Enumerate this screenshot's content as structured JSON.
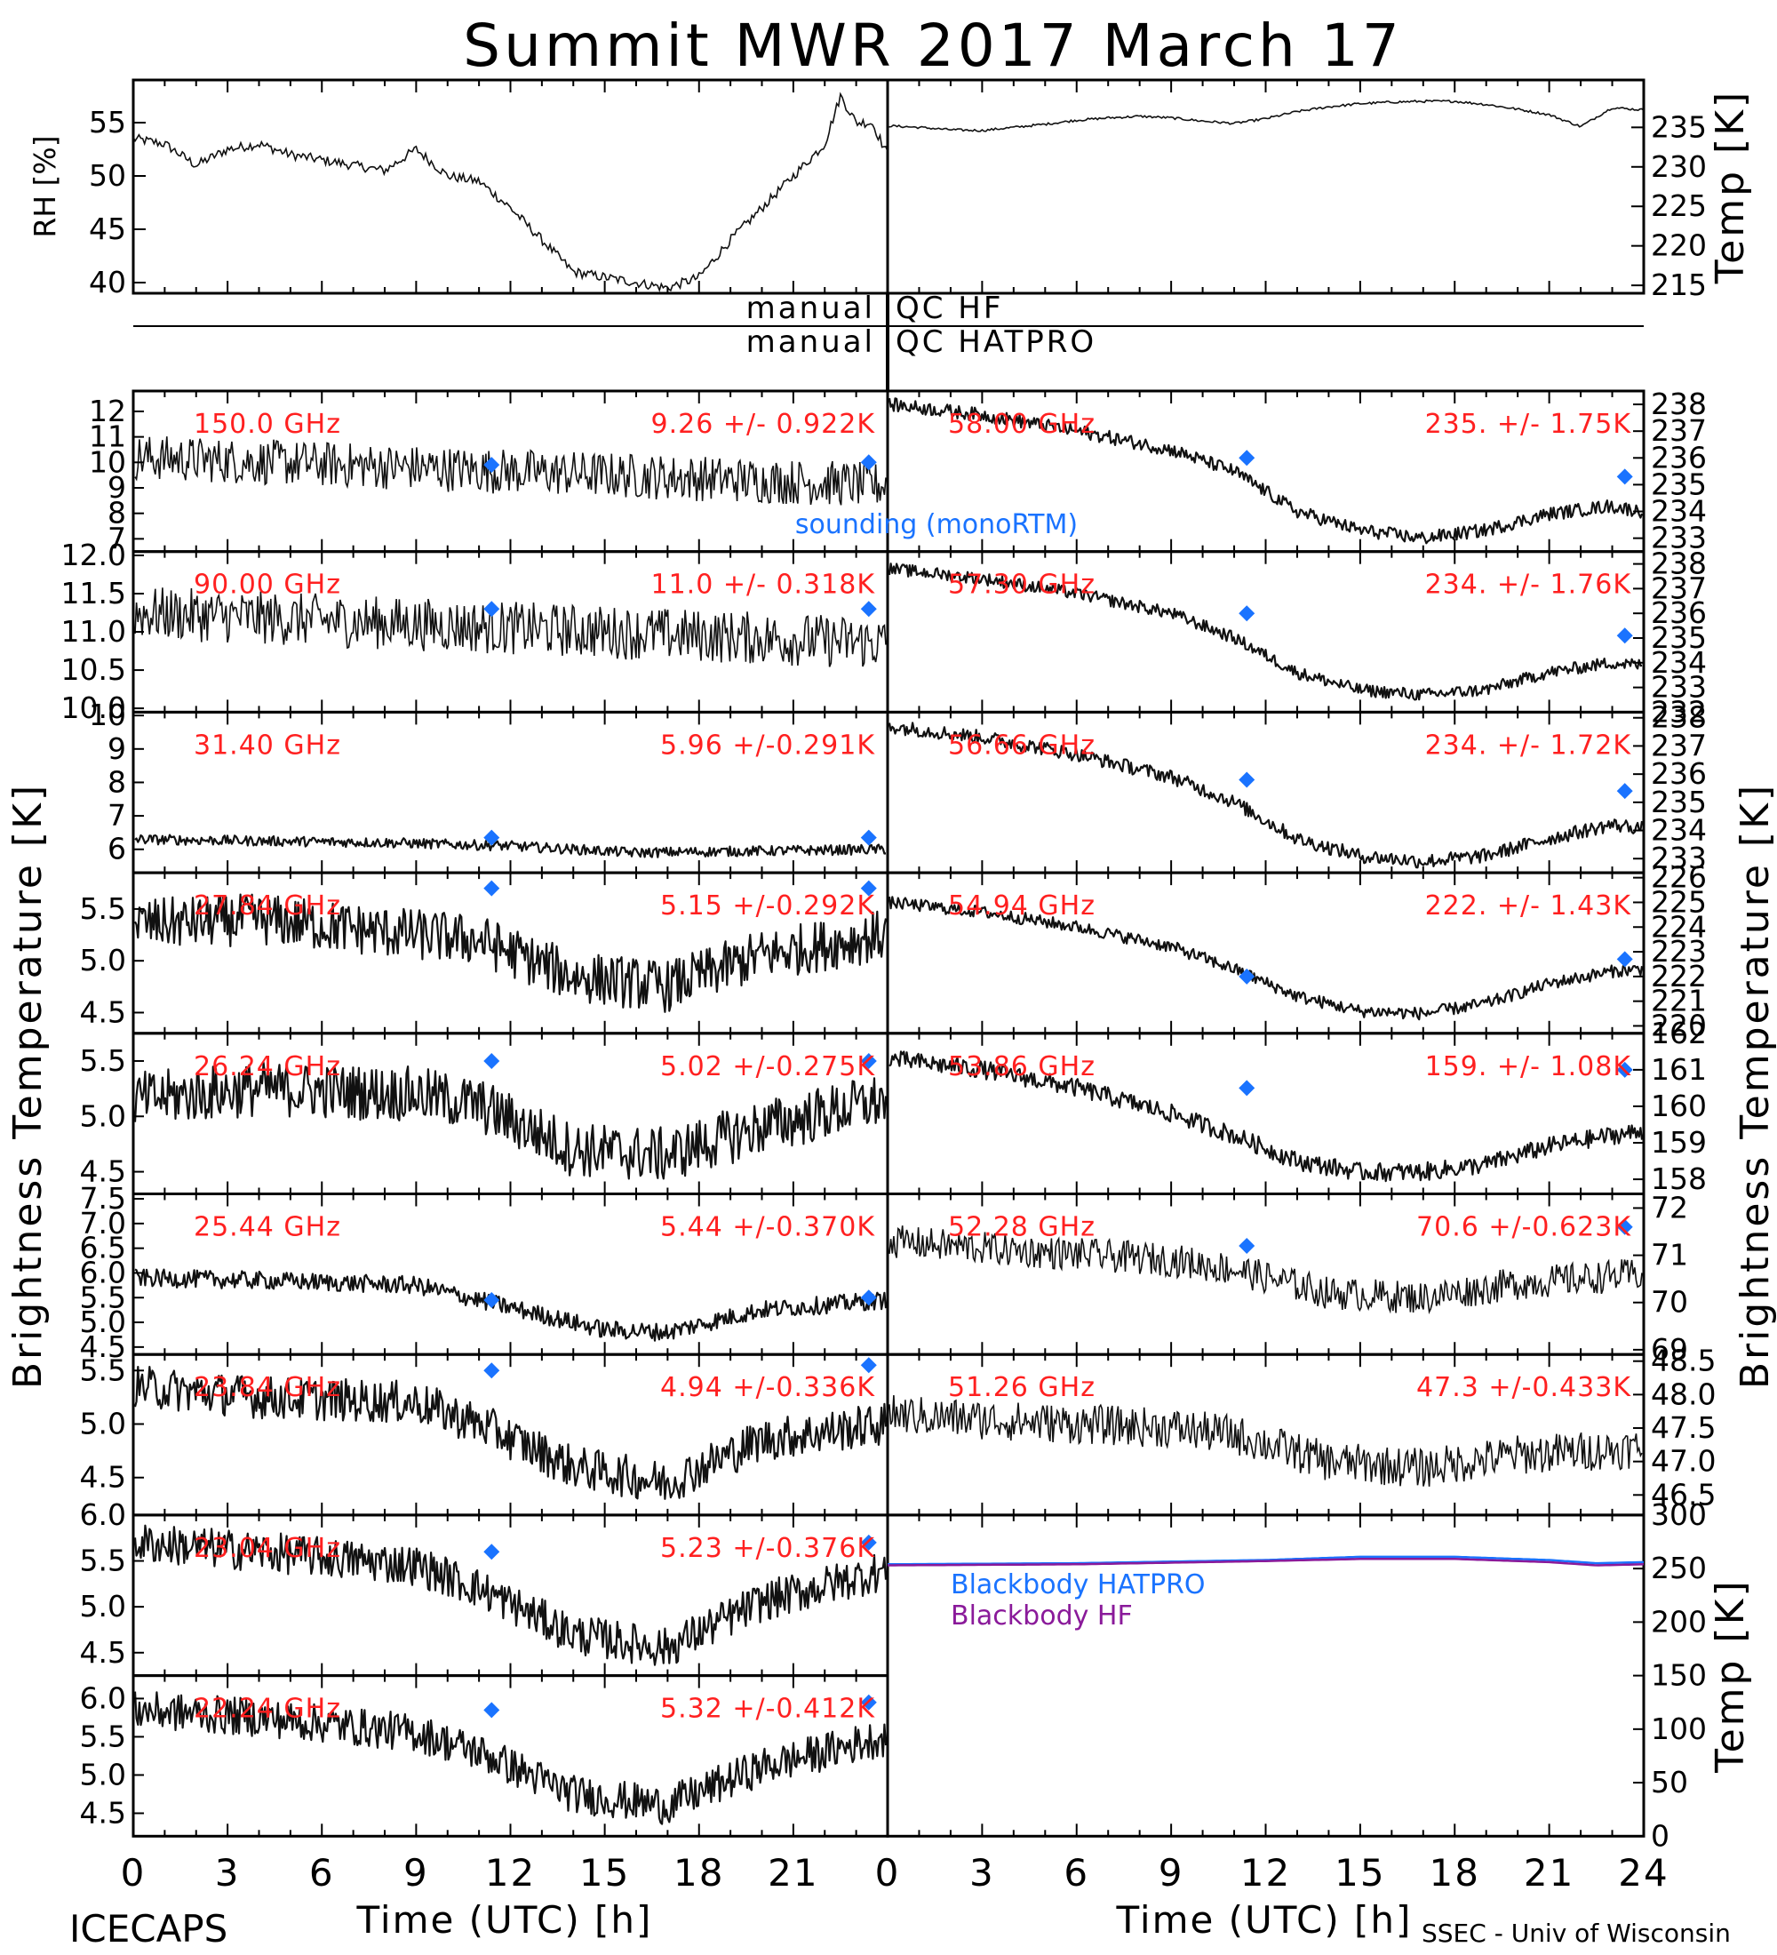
{
  "title": "Summit MWR 2017 March 17",
  "footer": {
    "left": "ICECAPS",
    "xlabel": "Time (UTC) [h]",
    "credit": "SSEC - Univ of Wisconsin"
  },
  "qc": {
    "left": "manual",
    "hf": "QC HF",
    "hatpro": "QC HATPRO"
  },
  "labels": {
    "left_y": "Brightness Temperature [K]",
    "right_y": "Brightness Temperature [K]",
    "sounding": "sounding (monoRTM)",
    "blackbody_hatpro": "Blackbody HATPRO",
    "blackbody_hf": "Blackbody HF"
  },
  "colors": {
    "annotation": "#ff2020",
    "sounding": "#1a73ff",
    "blackbody_hatpro": "#1a73ff",
    "blackbody_hf": "#8a1a9a",
    "trace": "#111111"
  },
  "chart_data": [
    {
      "type": "line",
      "panel": "rh",
      "ylabel": "RH [%]",
      "xlim": [
        0,
        24
      ],
      "ylim": [
        39,
        59
      ],
      "yticks": [
        40,
        45,
        50,
        55
      ],
      "xticks": [
        0,
        3,
        6,
        9,
        12,
        15,
        18,
        21
      ],
      "x": [
        0,
        1,
        2,
        3,
        4,
        5,
        6,
        7,
        8,
        9,
        10,
        11,
        12,
        13,
        14,
        15,
        16,
        17,
        18,
        19,
        20,
        21,
        22,
        22.5,
        23,
        23.5,
        24
      ],
      "y": [
        53.5,
        53,
        51,
        52.5,
        53,
        52,
        51.5,
        51,
        50.5,
        52.5,
        50,
        49.5,
        47,
        44,
        41,
        40.5,
        40,
        39.5,
        40.5,
        44,
        47,
        50,
        53,
        57.5,
        55,
        55,
        52
      ]
    },
    {
      "type": "line",
      "panel": "temp",
      "ylabel": "Temp [K]",
      "xlim": [
        0,
        24
      ],
      "ylim": [
        214,
        241
      ],
      "yticks": [
        215,
        220,
        225,
        230,
        235
      ],
      "x": [
        0,
        1,
        2,
        3,
        4,
        5,
        6,
        7,
        8,
        9,
        10,
        11,
        12,
        13,
        14,
        15,
        16,
        17,
        18,
        19,
        20,
        21,
        22,
        23,
        24
      ],
      "y": [
        235.2,
        235,
        234.7,
        234.6,
        235,
        235.4,
        235.9,
        236.2,
        236.4,
        236.2,
        235.8,
        235.5,
        236.1,
        237,
        237.6,
        238,
        238.2,
        238.3,
        238.3,
        237.9,
        237.3,
        236.6,
        235.1,
        237.5,
        237.2
      ]
    },
    {
      "type": "line",
      "panel": "ch-150",
      "side": "left",
      "label": "150.0 GHz",
      "stat": "9.26 +/- 0.922K",
      "ylim": [
        6.5,
        12.8
      ],
      "yticks": [
        "7",
        "8",
        "9",
        "10",
        "11",
        "12"
      ],
      "x": [
        0,
        24
      ],
      "y": [
        10.2,
        9.1
      ],
      "noise": 0.9,
      "thin": true,
      "sounding_x": [
        11.4,
        23.4
      ],
      "sounding_y": [
        9.9,
        10.0
      ]
    },
    {
      "type": "line",
      "panel": "ch-90",
      "side": "left",
      "label": "90.00 GHz",
      "stat": "11.0 +/- 0.318K",
      "ylim": [
        9.95,
        12.05
      ],
      "yticks": [
        "10.0",
        "10.5",
        "11.0",
        "11.5",
        "12.0"
      ],
      "x": [
        0,
        24
      ],
      "y": [
        11.25,
        10.85
      ],
      "noise": 0.35,
      "thin": true,
      "sounding_x": [
        11.4,
        23.4
      ],
      "sounding_y": [
        11.3,
        11.3
      ]
    },
    {
      "type": "line",
      "panel": "ch-31.4",
      "side": "left",
      "label": "31.40 GHz",
      "stat": "5.96 +/-0.291K",
      "ylim": [
        5.3,
        10.1
      ],
      "yticks": [
        "6",
        "7",
        "8",
        "9",
        "10"
      ],
      "x": [
        0,
        8,
        12,
        16,
        24
      ],
      "y": [
        6.3,
        6.2,
        6.1,
        5.9,
        6.0
      ],
      "noise": 0.15,
      "sounding_x": [
        11.4,
        23.4
      ],
      "sounding_y": [
        6.35,
        6.35
      ]
    },
    {
      "type": "line",
      "panel": "ch-27.84",
      "side": "left",
      "label": "27.84 GHz",
      "stat": "5.15 +/-0.292K",
      "ylim": [
        4.3,
        5.85
      ],
      "yticks": [
        "4.5",
        "5.0",
        "5.5"
      ],
      "x": [
        0,
        4,
        9,
        11,
        14,
        17,
        20,
        24
      ],
      "y": [
        5.35,
        5.4,
        5.25,
        5.2,
        4.85,
        4.75,
        5.05,
        5.25
      ],
      "noise": 0.25,
      "sounding_x": [
        11.4,
        23.4
      ],
      "sounding_y": [
        5.7,
        5.7
      ]
    },
    {
      "type": "line",
      "panel": "ch-26.24",
      "side": "left",
      "label": "26.24 GHz",
      "stat": "5.02 +/-0.275K",
      "ylim": [
        4.3,
        5.75
      ],
      "yticks": [
        "4.5",
        "5.0",
        "5.5"
      ],
      "x": [
        0,
        4,
        9,
        11,
        14,
        17,
        20,
        24
      ],
      "y": [
        5.15,
        5.25,
        5.2,
        5.1,
        4.7,
        4.65,
        4.9,
        5.15
      ],
      "noise": 0.25,
      "sounding_x": [
        11.4,
        23.4
      ],
      "sounding_y": [
        5.5,
        5.5
      ]
    },
    {
      "type": "line",
      "panel": "ch-25.44",
      "side": "left",
      "label": "25.44 GHz",
      "stat": "5.44 +/-0.370K",
      "ylim": [
        4.35,
        7.6
      ],
      "yticks": [
        "4.5",
        "5.0",
        "5.5",
        "6.0",
        "6.5",
        "7.0",
        "7.5"
      ],
      "x": [
        0,
        4,
        9,
        12,
        15,
        17,
        20,
        24
      ],
      "y": [
        5.9,
        5.85,
        5.75,
        5.3,
        4.85,
        4.8,
        5.25,
        5.45
      ],
      "noise": 0.18,
      "sounding_x": [
        11.4,
        23.4
      ],
      "sounding_y": [
        5.45,
        5.5
      ]
    },
    {
      "type": "line",
      "panel": "ch-23.84",
      "side": "left",
      "label": "23.84 GHz",
      "stat": "4.94 +/-0.336K",
      "ylim": [
        4.15,
        5.65
      ],
      "yticks": [
        "4.5",
        "5.0",
        "5.5"
      ],
      "x": [
        0,
        4,
        9,
        11,
        14,
        17,
        20,
        24
      ],
      "y": [
        5.35,
        5.25,
        5.2,
        5.0,
        4.6,
        4.45,
        4.85,
        5.0
      ],
      "noise": 0.2,
      "sounding_x": [
        11.4,
        23.4
      ],
      "sounding_y": [
        5.5,
        5.55
      ]
    },
    {
      "type": "line",
      "panel": "ch-23.04",
      "side": "left",
      "label": "23.04 GHz",
      "stat": "5.23 +/-0.376K",
      "ylim": [
        4.25,
        6.0
      ],
      "yticks": [
        "4.5",
        "5.0",
        "5.5",
        "6.0"
      ],
      "x": [
        0,
        4,
        9,
        11,
        14,
        17,
        20,
        24
      ],
      "y": [
        5.7,
        5.6,
        5.45,
        5.2,
        4.7,
        4.55,
        5.05,
        5.4
      ],
      "noise": 0.22,
      "sounding_x": [
        11.4,
        23.4
      ],
      "sounding_y": [
        5.6,
        5.7
      ]
    },
    {
      "type": "line",
      "panel": "ch-22.24",
      "side": "left",
      "label": "22.24 GHz",
      "stat": "5.32 +/-0.412K",
      "ylim": [
        4.2,
        6.3
      ],
      "yticks": [
        "4.5",
        "5.0",
        "5.5",
        "6.0"
      ],
      "x": [
        0,
        4,
        9,
        11,
        14,
        17,
        20,
        24
      ],
      "y": [
        5.85,
        5.75,
        5.55,
        5.3,
        4.75,
        4.6,
        5.1,
        5.5
      ],
      "noise": 0.25,
      "sounding_x": [
        11.4,
        23.4
      ],
      "sounding_y": [
        5.85,
        5.95
      ]
    },
    {
      "type": "line",
      "panel": "ch-58.00",
      "side": "right",
      "label": "58.00 GHz",
      "stat": "235. +/- 1.75K",
      "ylim": [
        232.5,
        238.5
      ],
      "yticks": [
        "233",
        "234",
        "235",
        "236",
        "237",
        "238"
      ],
      "x": [
        0,
        3,
        6,
        9,
        11,
        13,
        15,
        17,
        19,
        21,
        23,
        24
      ],
      "y": [
        238.0,
        237.6,
        237.0,
        236.3,
        235.5,
        234.0,
        233.3,
        233.0,
        233.3,
        233.9,
        234.2,
        234.0
      ],
      "noise": 0.25,
      "sounding_x": [
        11.4,
        23.4
      ],
      "sounding_y": [
        236.0,
        235.3
      ]
    },
    {
      "type": "line",
      "panel": "ch-57.30",
      "side": "right",
      "label": "57.30 GHz",
      "stat": "234. +/- 1.76K",
      "ylim": [
        232.0,
        238.5
      ],
      "yticks": [
        "232",
        "233",
        "234",
        "235",
        "236",
        "237",
        "238"
      ],
      "x": [
        0,
        3,
        6,
        9,
        11,
        13,
        15,
        17,
        19,
        21,
        23,
        24
      ],
      "y": [
        237.8,
        237.4,
        236.8,
        236.0,
        235.0,
        233.6,
        232.9,
        232.7,
        232.9,
        233.6,
        234.0,
        233.9
      ],
      "noise": 0.25,
      "sounding_x": [
        11.4,
        23.4
      ],
      "sounding_y": [
        236.0,
        235.1
      ]
    },
    {
      "type": "line",
      "panel": "ch-56.66",
      "side": "right",
      "label": "56.66 GHz",
      "stat": "234. +/- 1.72K",
      "ylim": [
        232.5,
        238.2
      ],
      "yticks": [
        "233",
        "234",
        "235",
        "236",
        "237",
        "238"
      ],
      "x": [
        0,
        3,
        6,
        9,
        11,
        13,
        15,
        17,
        19,
        21,
        23,
        24
      ],
      "y": [
        237.7,
        237.3,
        236.7,
        235.9,
        235.0,
        233.7,
        233.1,
        232.9,
        233.1,
        233.7,
        234.2,
        234.1
      ],
      "noise": 0.25,
      "sounding_x": [
        11.4,
        23.4
      ],
      "sounding_y": [
        235.8,
        235.4
      ]
    },
    {
      "type": "line",
      "panel": "ch-54.94",
      "side": "right",
      "label": "54.94 GHz",
      "stat": "222. +/- 1.43K",
      "ylim": [
        219.7,
        226.2
      ],
      "yticks": [
        "220",
        "221",
        "222",
        "223",
        "224",
        "225",
        "226"
      ],
      "x": [
        0,
        3,
        6,
        9,
        11,
        13,
        15,
        17,
        19,
        21,
        23,
        24
      ],
      "y": [
        225.0,
        224.6,
        224.0,
        223.2,
        222.3,
        221.2,
        220.6,
        220.5,
        220.9,
        221.7,
        222.2,
        222.3
      ],
      "noise": 0.25,
      "sounding_x": [
        11.4,
        23.4
      ],
      "sounding_y": [
        222.0,
        222.7
      ]
    },
    {
      "type": "line",
      "panel": "ch-53.86",
      "side": "right",
      "label": "53.86 GHz",
      "stat": "159. +/- 1.08K",
      "ylim": [
        157.6,
        162.0
      ],
      "yticks": [
        "158",
        "159",
        "160",
        "161",
        "162"
      ],
      "x": [
        0,
        3,
        6,
        9,
        11,
        13,
        15,
        17,
        19,
        21,
        23,
        24
      ],
      "y": [
        161.3,
        161.0,
        160.5,
        159.8,
        159.2,
        158.5,
        158.2,
        158.2,
        158.4,
        158.9,
        159.2,
        159.3
      ],
      "noise": 0.25,
      "sounding_x": [
        11.4,
        23.4
      ],
      "sounding_y": [
        160.5,
        161.0
      ]
    },
    {
      "type": "line",
      "panel": "ch-52.28",
      "side": "right",
      "label": "52.28 GHz",
      "stat": "70.6 +/-0.623K",
      "ylim": [
        68.9,
        72.3
      ],
      "yticks": [
        "69",
        "70",
        "71",
        "72"
      ],
      "x": [
        0,
        4,
        9,
        11,
        14,
        17,
        20,
        24
      ],
      "y": [
        71.3,
        71.1,
        70.9,
        70.7,
        70.2,
        70.1,
        70.4,
        70.6
      ],
      "noise": 0.35,
      "thin": true,
      "sounding_x": [
        11.4,
        23.4
      ],
      "sounding_y": [
        71.2,
        71.6
      ]
    },
    {
      "type": "line",
      "panel": "ch-51.26",
      "side": "right",
      "label": "51.26 GHz",
      "stat": "47.3 +/-0.433K",
      "ylim": [
        46.2,
        48.6
      ],
      "yticks": [
        "46.5",
        "47.0",
        "47.5",
        "48.0",
        "48.5"
      ],
      "x": [
        0,
        4,
        9,
        11,
        14,
        17,
        20,
        24
      ],
      "y": [
        47.7,
        47.6,
        47.5,
        47.4,
        47.0,
        46.9,
        47.1,
        47.2
      ],
      "noise": 0.3,
      "thin": true,
      "sounding_x": [],
      "sounding_y": []
    },
    {
      "type": "line",
      "panel": "blackbody",
      "side": "right",
      "ylabel": "Temp [K]",
      "ylim": [
        0,
        300
      ],
      "yticks": [
        "0",
        "50",
        "100",
        "150",
        "200",
        "250",
        "300"
      ],
      "xticks": [
        0,
        3,
        6,
        9,
        12,
        15,
        18,
        21,
        24
      ],
      "series": [
        {
          "name": "Blackbody HATPRO",
          "x": [
            0,
            6,
            12,
            15,
            18,
            21,
            22.5,
            24
          ],
          "y": [
            254,
            255,
            258,
            261,
            261,
            258,
            255,
            256
          ]
        },
        {
          "name": "Blackbody HF",
          "x": [
            0,
            6,
            12,
            15,
            18,
            21,
            22.5,
            24
          ],
          "y": [
            253,
            254,
            257,
            259,
            259,
            256,
            253,
            254
          ]
        }
      ]
    }
  ]
}
